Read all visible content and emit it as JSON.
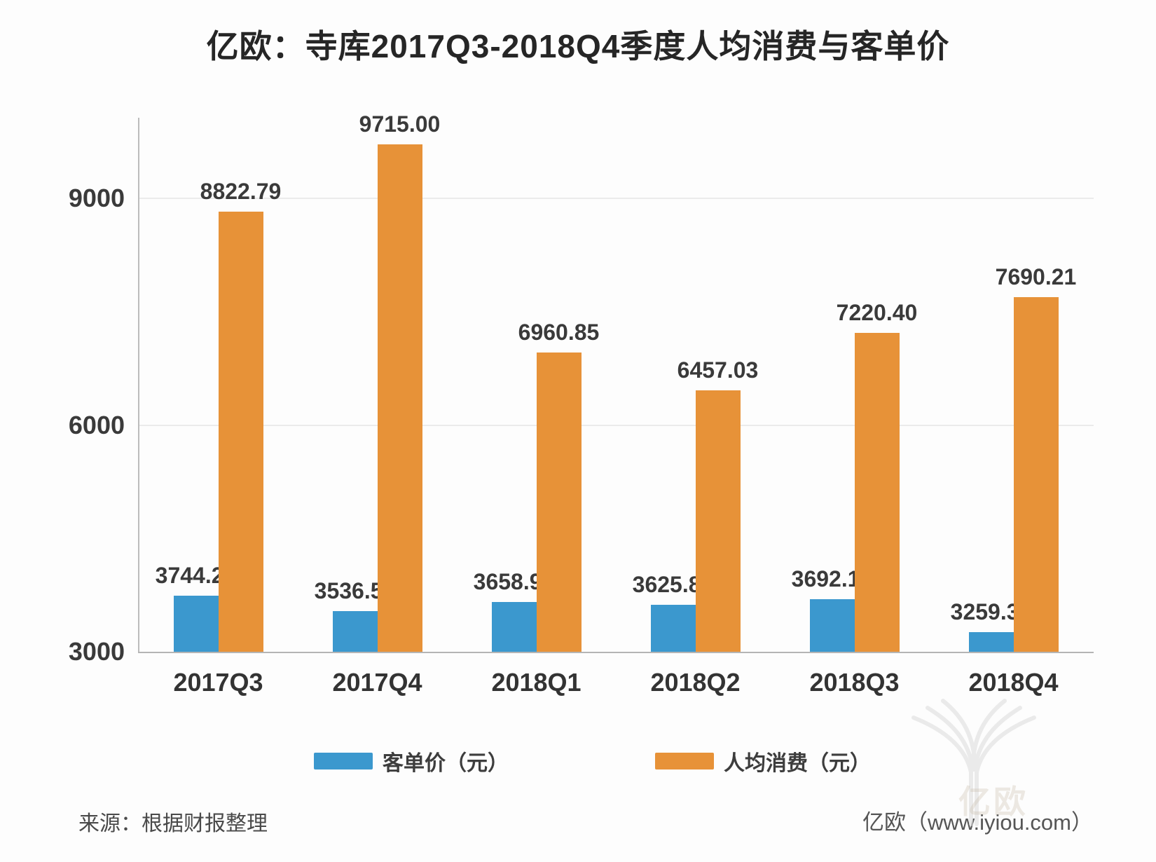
{
  "page": {
    "title": "亿欧：寺库2017Q3-2018Q4季度人均消费与客单价",
    "source_note": "来源：根据财报整理",
    "credit": "亿欧（www.iyiou.com）",
    "watermark_text": "亿欧"
  },
  "chart_data": {
    "type": "bar",
    "title": "亿欧：寺库2017Q3-2018Q4季度人均消费与客单价",
    "categories": [
      "2017Q3",
      "2017Q4",
      "2018Q1",
      "2018Q2",
      "2018Q3",
      "2018Q4"
    ],
    "series": [
      {
        "name": "客单价（元）",
        "color": "#3B98CE",
        "values": [
          3744.29,
          3536.59,
          3658.94,
          3625.8,
          3692.13,
          3259.3
        ]
      },
      {
        "name": "人均消费（元）",
        "color": "#E79238",
        "values": [
          8822.79,
          9715.0,
          6960.85,
          6457.03,
          7220.4,
          7690.21
        ]
      }
    ],
    "ylim": [
      3000,
      10070
    ],
    "yticks": [
      3000,
      6000,
      9000
    ],
    "grid": true,
    "legend_position": "bottom",
    "value_labels": true,
    "value_label_format": "0.00"
  }
}
